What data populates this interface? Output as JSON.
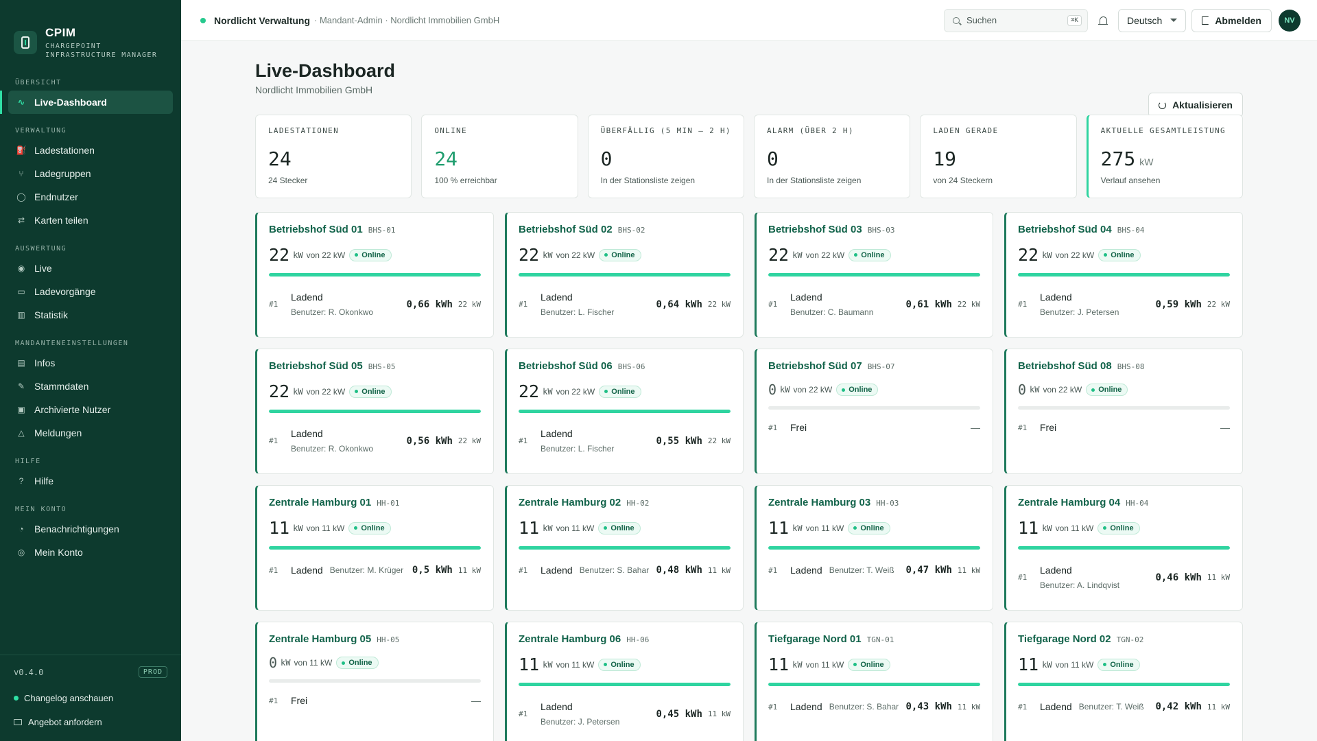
{
  "brand": {
    "name": "CPIM",
    "sub_line1": "CHARGEPOINT",
    "sub_line2": "INFRASTRUCTURE MANAGER"
  },
  "sidebar": {
    "sections": [
      {
        "title": "ÜBERSICHT",
        "items": [
          {
            "label": "Live-Dashboard",
            "icon": "activity-icon",
            "active": true
          }
        ]
      },
      {
        "title": "VERWALTUNG",
        "items": [
          {
            "label": "Ladestationen",
            "icon": "fuel-icon"
          },
          {
            "label": "Ladegruppen",
            "icon": "network-icon"
          },
          {
            "label": "Endnutzer",
            "icon": "user-icon"
          },
          {
            "label": "Karten teilen",
            "icon": "share-icon"
          }
        ]
      },
      {
        "title": "AUSWERTUNG",
        "items": [
          {
            "label": "Live",
            "icon": "radio-icon"
          },
          {
            "label": "Ladevorgänge",
            "icon": "plug-icon"
          },
          {
            "label": "Statistik",
            "icon": "chart-icon"
          }
        ]
      },
      {
        "title": "MANDANTENEINSTELLUNGEN",
        "items": [
          {
            "label": "Infos",
            "icon": "building-icon"
          },
          {
            "label": "Stammdaten",
            "icon": "pencil-icon"
          },
          {
            "label": "Archivierte Nutzer",
            "icon": "archive-icon"
          },
          {
            "label": "Meldungen",
            "icon": "alert-icon"
          }
        ]
      },
      {
        "title": "HILFE",
        "items": [
          {
            "label": "Hilfe",
            "icon": "help-icon"
          }
        ]
      },
      {
        "title": "MEIN KONTO",
        "items": [
          {
            "label": "Benachrichtigungen",
            "icon": "bell-icon"
          },
          {
            "label": "Mein Konto",
            "icon": "account-icon"
          }
        ]
      }
    ],
    "footer": {
      "version": "v0.4.0",
      "env": "PROD",
      "changelog": "Changelog anschauen",
      "offer": "Angebot anfordern"
    }
  },
  "topbar": {
    "tenant": "Nordlicht Verwaltung",
    "meta": "· Mandant-Admin · Nordlicht Immobilien GmbH",
    "search_placeholder": "Suchen",
    "search_kbd": "⌘K",
    "language": "Deutsch",
    "logout": "Abmelden",
    "avatar": "NV"
  },
  "page": {
    "title": "Live-Dashboard",
    "subtitle": "Nordlicht Immobilien GmbH",
    "refresh": "Aktualisieren"
  },
  "stats": [
    {
      "label": "LADESTATIONEN",
      "value": "24",
      "unit": "",
      "note": "24 Stecker"
    },
    {
      "label": "ONLINE",
      "value": "24",
      "unit": "",
      "note": "100 % erreichbar",
      "green": true
    },
    {
      "label": "ÜBERFÄLLIG (5 MIN – 2 H)",
      "value": "0",
      "unit": "",
      "note": "In der Stationsliste zeigen"
    },
    {
      "label": "ALARM (ÜBER 2 H)",
      "value": "0",
      "unit": "",
      "note": "In der Stationsliste zeigen"
    },
    {
      "label": "LADEN GERADE",
      "value": "19",
      "unit": "",
      "note": "von 24 Steckern"
    },
    {
      "label": "AKTUELLE GESAMTLEISTUNG",
      "value": "275",
      "unit": "kW",
      "note": "Verlauf ansehen",
      "accent": true
    }
  ],
  "stations": [
    {
      "name": "Betriebshof Süd 01",
      "code": "BHS-01",
      "power": "22",
      "kw": "kW",
      "of": "von 22 kW",
      "status": "Online",
      "fill": 1.0,
      "conn": "#1",
      "state": "Ladend",
      "user": "Benutzer: R. Okonkwo",
      "energy": "0,66 kWh",
      "ckw": "22 kW",
      "inline": false
    },
    {
      "name": "Betriebshof Süd 02",
      "code": "BHS-02",
      "power": "22",
      "kw": "kW",
      "of": "von 22 kW",
      "status": "Online",
      "fill": 1.0,
      "conn": "#1",
      "state": "Ladend",
      "user": "Benutzer: L. Fischer",
      "energy": "0,64 kWh",
      "ckw": "22 kW",
      "inline": false
    },
    {
      "name": "Betriebshof Süd 03",
      "code": "BHS-03",
      "power": "22",
      "kw": "kW",
      "of": "von 22 kW",
      "status": "Online",
      "fill": 1.0,
      "conn": "#1",
      "state": "Ladend",
      "user": "Benutzer: C. Baumann",
      "energy": "0,61 kWh",
      "ckw": "22 kW",
      "inline": false
    },
    {
      "name": "Betriebshof Süd 04",
      "code": "BHS-04",
      "power": "22",
      "kw": "kW",
      "of": "von 22 kW",
      "status": "Online",
      "fill": 1.0,
      "conn": "#1",
      "state": "Ladend",
      "user": "Benutzer: J. Petersen",
      "energy": "0,59 kWh",
      "ckw": "22 kW",
      "inline": false
    },
    {
      "name": "Betriebshof Süd 05",
      "code": "BHS-05",
      "power": "22",
      "kw": "kW",
      "of": "von 22 kW",
      "status": "Online",
      "fill": 1.0,
      "conn": "#1",
      "state": "Ladend",
      "user": "Benutzer: R. Okonkwo",
      "energy": "0,56 kWh",
      "ckw": "22 kW",
      "inline": false
    },
    {
      "name": "Betriebshof Süd 06",
      "code": "BHS-06",
      "power": "22",
      "kw": "kW",
      "of": "von 22 kW",
      "status": "Online",
      "fill": 1.0,
      "conn": "#1",
      "state": "Ladend",
      "user": "Benutzer: L. Fischer",
      "energy": "0,55 kWh",
      "ckw": "22 kW",
      "inline": false
    },
    {
      "name": "Betriebshof Süd 07",
      "code": "BHS-07",
      "power": "0",
      "kw": "kW",
      "of": "von 22 kW",
      "status": "Online",
      "fill": 0,
      "conn": "#1",
      "state": "Frei",
      "user": "",
      "energy": "",
      "ckw": "",
      "dash": "—",
      "free": true
    },
    {
      "name": "Betriebshof Süd 08",
      "code": "BHS-08",
      "power": "0",
      "kw": "kW",
      "of": "von 22 kW",
      "status": "Online",
      "fill": 0,
      "conn": "#1",
      "state": "Frei",
      "user": "",
      "energy": "",
      "ckw": "",
      "dash": "—",
      "free": true
    },
    {
      "name": "Zentrale Hamburg 01",
      "code": "HH-01",
      "power": "11",
      "kw": "kW",
      "of": "von 11 kW",
      "status": "Online",
      "fill": 1.0,
      "conn": "#1",
      "state": "Ladend",
      "user": "Benutzer: M. Krüger",
      "energy": "0,5 kWh",
      "ckw": "11 kW",
      "inline": true
    },
    {
      "name": "Zentrale Hamburg 02",
      "code": "HH-02",
      "power": "11",
      "kw": "kW",
      "of": "von 11 kW",
      "status": "Online",
      "fill": 1.0,
      "conn": "#1",
      "state": "Ladend",
      "user": "Benutzer: S. Bahar",
      "energy": "0,48 kWh",
      "ckw": "11 kW",
      "inline": true
    },
    {
      "name": "Zentrale Hamburg 03",
      "code": "HH-03",
      "power": "11",
      "kw": "kW",
      "of": "von 11 kW",
      "status": "Online",
      "fill": 1.0,
      "conn": "#1",
      "state": "Ladend",
      "user": "Benutzer: T. Weiß",
      "energy": "0,47 kWh",
      "ckw": "11 kW",
      "inline": true
    },
    {
      "name": "Zentrale Hamburg 04",
      "code": "HH-04",
      "power": "11",
      "kw": "kW",
      "of": "von 11 kW",
      "status": "Online",
      "fill": 1.0,
      "conn": "#1",
      "state": "Ladend",
      "user": "Benutzer: A. Lindqvist",
      "energy": "0,46 kWh",
      "ckw": "11 kW",
      "inline": false
    },
    {
      "name": "Zentrale Hamburg 05",
      "code": "HH-05",
      "power": "0",
      "kw": "kW",
      "of": "von 11 kW",
      "status": "Online",
      "fill": 0,
      "conn": "#1",
      "state": "Frei",
      "user": "",
      "energy": "",
      "ckw": "",
      "dash": "—",
      "free": true
    },
    {
      "name": "Zentrale Hamburg 06",
      "code": "HH-06",
      "power": "11",
      "kw": "kW",
      "of": "von 11 kW",
      "status": "Online",
      "fill": 1.0,
      "conn": "#1",
      "state": "Ladend",
      "user": "Benutzer: J. Petersen",
      "energy": "0,45 kWh",
      "ckw": "11 kW",
      "inline": false
    },
    {
      "name": "Tiefgarage Nord 01",
      "code": "TGN-01",
      "power": "11",
      "kw": "kW",
      "of": "von 11 kW",
      "status": "Online",
      "fill": 1.0,
      "conn": "#1",
      "state": "Ladend",
      "user": "Benutzer: S. Bahar",
      "energy": "0,43 kWh",
      "ckw": "11 kW",
      "inline": true
    },
    {
      "name": "Tiefgarage Nord 02",
      "code": "TGN-02",
      "power": "11",
      "kw": "kW",
      "of": "von 11 kW",
      "status": "Online",
      "fill": 1.0,
      "conn": "#1",
      "state": "Ladend",
      "user": "Benutzer: T. Weiß",
      "energy": "0,42 kWh",
      "ckw": "11 kW",
      "inline": true
    }
  ]
}
